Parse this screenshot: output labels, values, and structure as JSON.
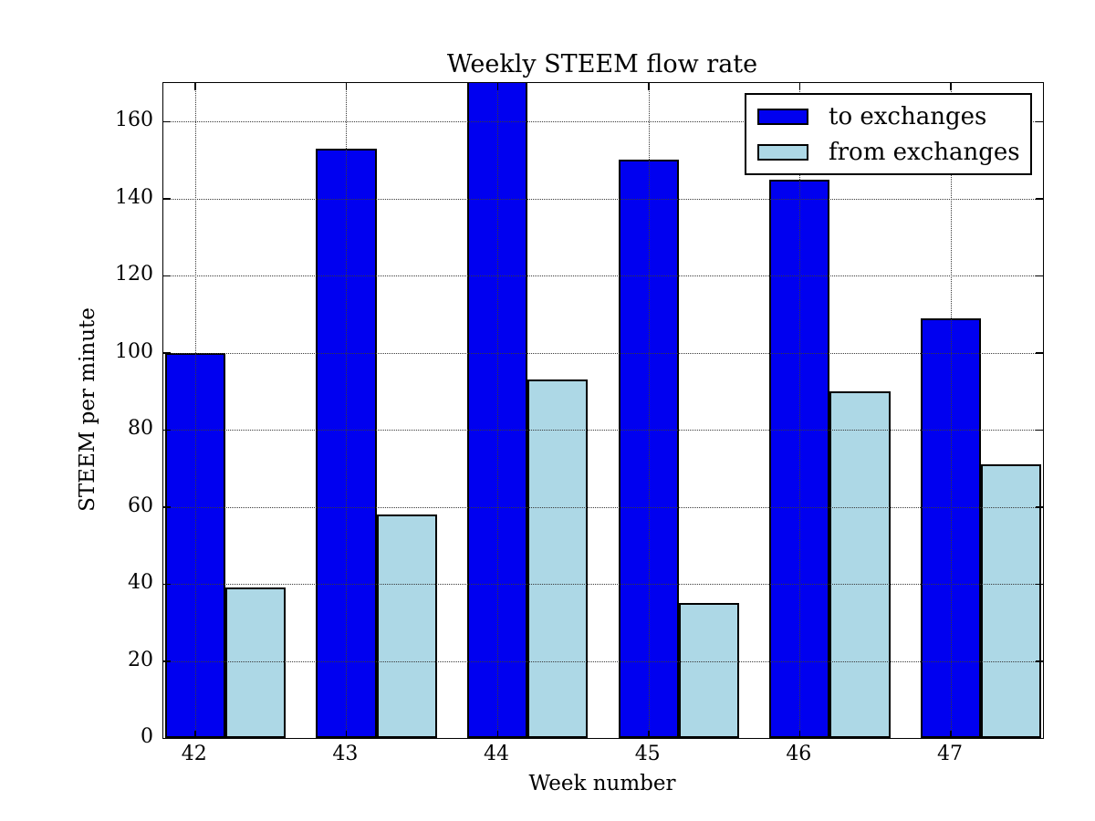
{
  "title": "Weekly STEEM flow rate",
  "chart_data": {
    "type": "bar",
    "title": "Weekly STEEM flow rate",
    "xlabel": "Week number",
    "ylabel": "STEEM per minute",
    "categories": [
      42,
      43,
      44,
      45,
      46,
      47
    ],
    "series": [
      {
        "name": "to exchanges",
        "color": "#0000F0",
        "values": [
          100,
          153,
          170,
          150,
          145,
          109
        ]
      },
      {
        "name": "from exchanges",
        "color": "#ADD8E6",
        "values": [
          39,
          58,
          93,
          35,
          90,
          71
        ]
      }
    ],
    "ylim": [
      0,
      170
    ],
    "xlim": [
      41.79,
      47.61
    ],
    "yticks": [
      0,
      20,
      40,
      60,
      80,
      100,
      120,
      140,
      160
    ],
    "bar_width_units": 0.4,
    "grid": "dotted, drawn above bars",
    "legend_position": "upper right",
    "edge_color": "#000000",
    "annotations": [
      "week 44 'to exchanges' bar is clipped at the top of the axes (value >= 170)"
    ]
  },
  "legend": {
    "border_color": "#000000",
    "background": "#ffffff"
  }
}
